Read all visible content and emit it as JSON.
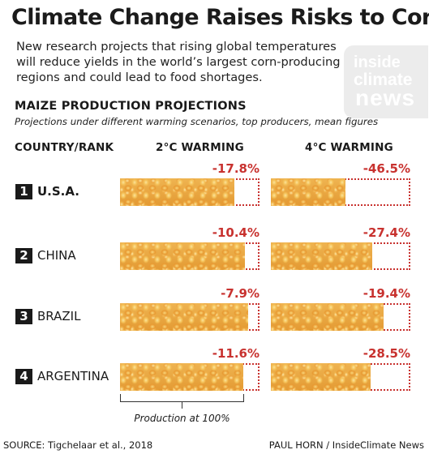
{
  "header": {
    "title": "Climate Change Raises Risks to Corn",
    "subtitle": "New research projects that rising global temperatures will reduce yields in the world’s largest corn-producing regions and could lead to food shortages."
  },
  "logo": {
    "line1": "inside",
    "line2": "climate",
    "line3": "news"
  },
  "section": {
    "title": "MAIZE PRODUCTION PROJECTIONS",
    "subtitle": "Projections under different warming scenarios, top producers, mean figures"
  },
  "columns": {
    "country": "COUNTRY/RANK",
    "s1": "2°C WARMING",
    "s2": "4°C WARMING"
  },
  "colors": {
    "loss": "#c8322f",
    "corn": "#e9a43e"
  },
  "chart_data": {
    "type": "bar",
    "title": "MAIZE PRODUCTION PROJECTIONS",
    "categories": [
      "U.S.A.",
      "CHINA",
      "BRAZIL",
      "ARGENTINA"
    ],
    "ranks": [
      "1",
      "2",
      "3",
      "4"
    ],
    "series": [
      {
        "name": "2°C WARMING",
        "values": [
          -17.8,
          -10.4,
          -7.9,
          -11.6
        ],
        "labels": [
          "-17.8%",
          "-10.4%",
          "-7.9%",
          "-11.6%"
        ]
      },
      {
        "name": "4°C WARMING",
        "values": [
          -46.5,
          -27.4,
          -19.4,
          -28.5
        ],
        "labels": [
          "-46.5%",
          "-27.4%",
          "-19.4%",
          "-28.5%"
        ]
      }
    ],
    "baseline_label": "Production at 100%",
    "ylim": [
      -100,
      0
    ]
  },
  "footer": {
    "source": "SOURCE: Tigchelaar et al., 2018",
    "credit": "PAUL HORN / InsideClimate News"
  }
}
